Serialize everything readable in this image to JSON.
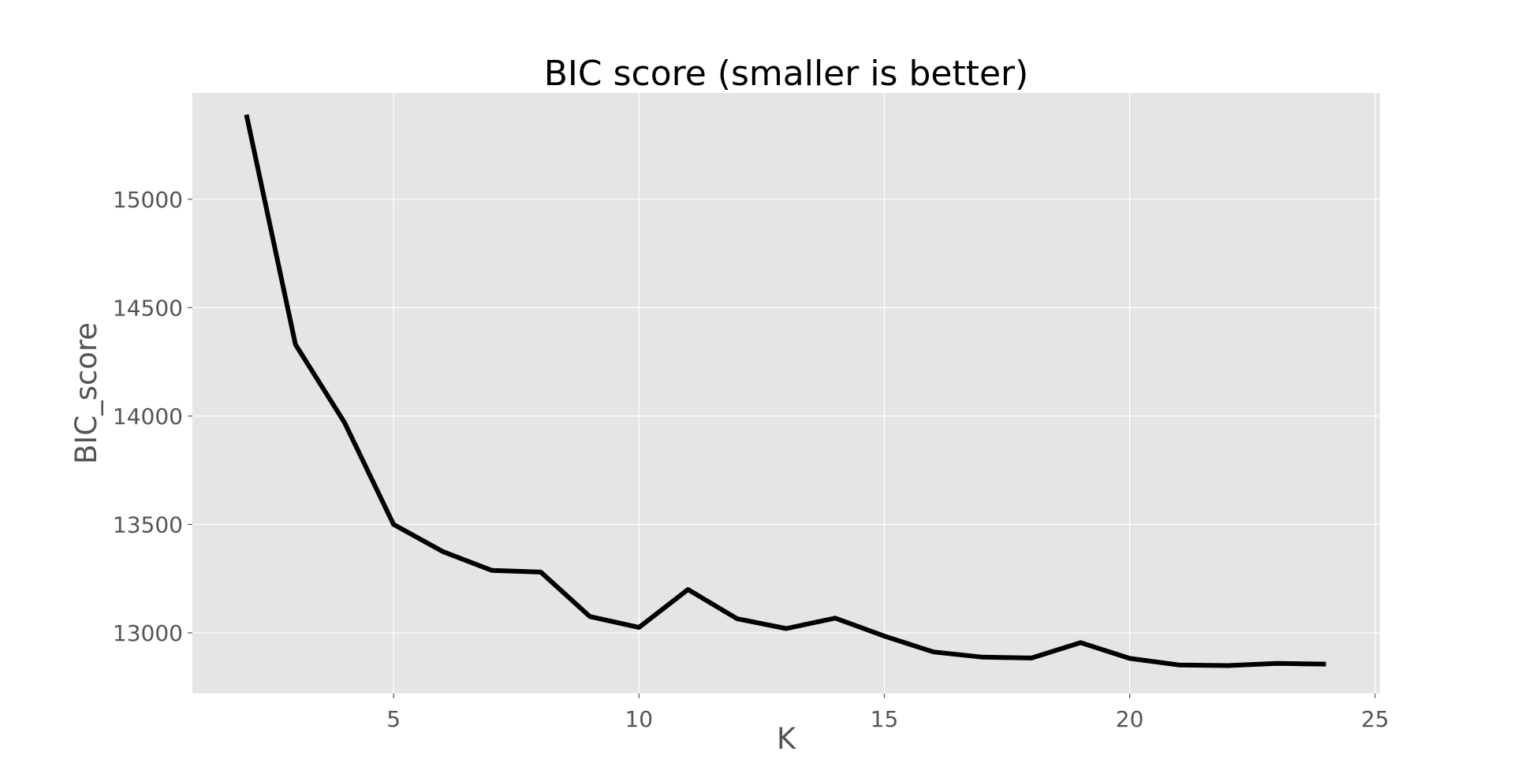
{
  "chart_data": {
    "type": "line",
    "title": "BIC score (smaller is better)",
    "xlabel": "K",
    "ylabel": "BIC_score",
    "xlim": [
      0.9,
      25.1
    ],
    "ylim": [
      12720,
      15490
    ],
    "x_ticks": [
      5,
      10,
      15,
      20,
      25
    ],
    "y_ticks": [
      13000,
      13500,
      14000,
      14500,
      15000
    ],
    "grid": true,
    "background_color": "#e5e5e5",
    "grid_color": "#ffffff",
    "line_color": "#000000",
    "series": [
      {
        "x": [
          2,
          3,
          4,
          5,
          6,
          7,
          8,
          9,
          10,
          11,
          12,
          13,
          14,
          15,
          16,
          17,
          18,
          19,
          20,
          21,
          22,
          23,
          24
        ],
        "values": [
          15390,
          14330,
          13970,
          13500,
          13375,
          13288,
          13280,
          13075,
          13025,
          13200,
          13065,
          13020,
          13068,
          12985,
          12912,
          12888,
          12884,
          12955,
          12882,
          12852,
          12849,
          12859,
          12856
        ]
      }
    ]
  }
}
